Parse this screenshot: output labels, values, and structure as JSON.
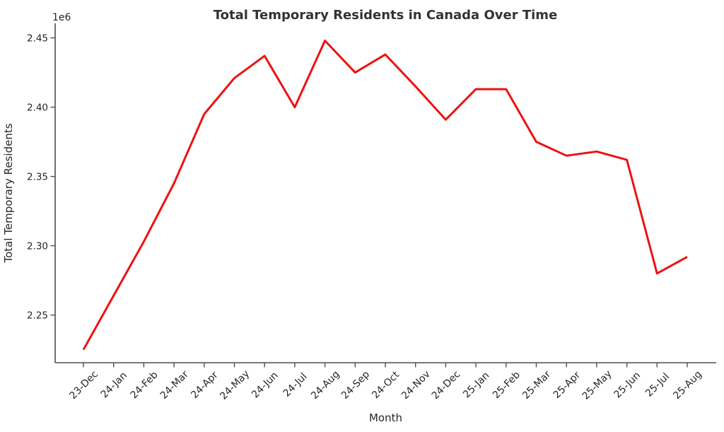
{
  "page": {
    "background": "#ffffff"
  },
  "chart_data": {
    "type": "line",
    "title": "Total Temporary Residents in Canada Over Time",
    "xlabel": "Month",
    "ylabel": "Total Temporary Residents",
    "offset_text": "1e6",
    "categories": [
      "23-Dec",
      "24-Jan",
      "24-Feb",
      "24-Mar",
      "24-Apr",
      "24-May",
      "24-Jun",
      "24-Jul",
      "24-Aug",
      "24-Sep",
      "24-Oct",
      "24-Nov",
      "24-Dec",
      "25-Jan",
      "25-Feb",
      "25-Mar",
      "25-Apr",
      "25-May",
      "25-Jun",
      "25-Jul",
      "25-Aug"
    ],
    "series": [
      {
        "name": "Total Temporary Residents",
        "color": "#ee1111",
        "values": [
          2225000,
          2264000,
          2303000,
          2345000,
          2395000,
          2421000,
          2437000,
          2400000,
          2448000,
          2425000,
          2438000,
          2415000,
          2391000,
          2413000,
          2413000,
          2375000,
          2365000,
          2368000,
          2362000,
          2280000,
          2292000
        ]
      }
    ],
    "yticks": [
      2250000,
      2300000,
      2350000,
      2400000,
      2450000
    ],
    "ytick_labels": [
      "2.25",
      "2.30",
      "2.35",
      "2.40",
      "2.45"
    ],
    "ylim": [
      2215600,
      2460500
    ],
    "grid": false,
    "legend_position": "none",
    "line_width": 3,
    "axis_color": "#4d4d4d",
    "text_color": "#262626",
    "title_color": "#333333"
  }
}
